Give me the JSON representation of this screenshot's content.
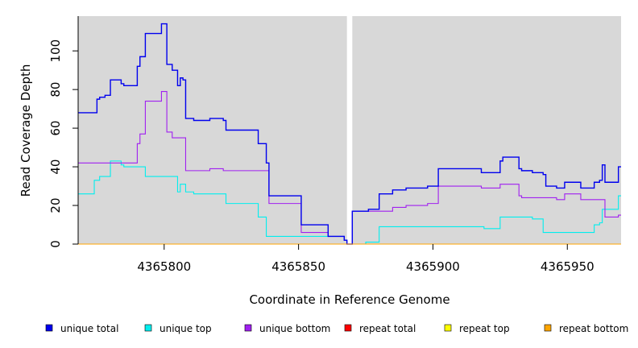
{
  "chart_data": {
    "type": "line",
    "title": "",
    "xlabel": "Coordinate in Reference Genome",
    "ylabel": "Read Coverage Depth",
    "xlim": [
      4365768,
      4365970
    ],
    "ylim": [
      0,
      118
    ],
    "grid": false,
    "background": "#d8d8d8",
    "gap": {
      "from": 4365868,
      "to": 4365870
    },
    "x_ticks": [
      4365800,
      4365850,
      4365900,
      4365950
    ],
    "x_tick_labels": [
      "4365800",
      "4365850",
      "4365900",
      "4365950"
    ],
    "y_ticks": [
      0,
      20,
      40,
      60,
      80,
      100
    ],
    "y_tick_labels": [
      "0",
      "20",
      "40",
      "60",
      "80",
      "100"
    ],
    "legend_position": "bottom",
    "series": [
      {
        "name": "unique total",
        "color": "#0000ee",
        "step": true,
        "points": [
          [
            4365768,
            68
          ],
          [
            4365775,
            75
          ],
          [
            4365776,
            76
          ],
          [
            4365778,
            77
          ],
          [
            4365780,
            85
          ],
          [
            4365782,
            85
          ],
          [
            4365784,
            83
          ],
          [
            4365785,
            82
          ],
          [
            4365790,
            92
          ],
          [
            4365791,
            97
          ],
          [
            4365793,
            109
          ],
          [
            4365799,
            114
          ],
          [
            4365801,
            93
          ],
          [
            4365803,
            90
          ],
          [
            4365805,
            82
          ],
          [
            4365806,
            86
          ],
          [
            4365807,
            85
          ],
          [
            4365808,
            65
          ],
          [
            4365811,
            64
          ],
          [
            4365817,
            65
          ],
          [
            4365822,
            64
          ],
          [
            4365823,
            59
          ],
          [
            4365835,
            52
          ],
          [
            4365838,
            42
          ],
          [
            4365839,
            25
          ],
          [
            4365851,
            10
          ],
          [
            4365861,
            4
          ],
          [
            4365867,
            2
          ],
          [
            4365868,
            0
          ],
          [
            4365870,
            17
          ],
          [
            4365876,
            18
          ],
          [
            4365880,
            26
          ],
          [
            4365885,
            28
          ],
          [
            4365890,
            29
          ],
          [
            4365898,
            30
          ],
          [
            4365902,
            39
          ],
          [
            4365918,
            37
          ],
          [
            4365925,
            43
          ],
          [
            4365926,
            45
          ],
          [
            4365932,
            39
          ],
          [
            4365933,
            38
          ],
          [
            4365937,
            37
          ],
          [
            4365941,
            36
          ],
          [
            4365942,
            30
          ],
          [
            4365946,
            29
          ],
          [
            4365949,
            32
          ],
          [
            4365955,
            29
          ],
          [
            4365960,
            32
          ],
          [
            4365962,
            33
          ],
          [
            4365963,
            41
          ],
          [
            4365964,
            32
          ],
          [
            4365969,
            40
          ]
        ]
      },
      {
        "name": "unique top",
        "color": "#00eeee",
        "step": true,
        "points": [
          [
            4365768,
            26
          ],
          [
            4365774,
            33
          ],
          [
            4365776,
            35
          ],
          [
            4365780,
            43
          ],
          [
            4365784,
            41
          ],
          [
            4365785,
            40
          ],
          [
            4365793,
            35
          ],
          [
            4365805,
            27
          ],
          [
            4365806,
            31
          ],
          [
            4365808,
            27
          ],
          [
            4365811,
            26
          ],
          [
            4365823,
            21
          ],
          [
            4365835,
            14
          ],
          [
            4365838,
            4
          ],
          [
            4365867,
            2
          ],
          [
            4365868,
            0
          ],
          [
            4365870,
            0
          ],
          [
            4365875,
            1
          ],
          [
            4365880,
            9
          ],
          [
            4365919,
            8
          ],
          [
            4365925,
            14
          ],
          [
            4365937,
            13
          ],
          [
            4365941,
            6
          ],
          [
            4365960,
            10
          ],
          [
            4365962,
            11
          ],
          [
            4365963,
            18
          ],
          [
            4365969,
            25
          ]
        ]
      },
      {
        "name": "unique bottom",
        "color": "#a020f0",
        "step": true,
        "points": [
          [
            4365768,
            42
          ],
          [
            4365790,
            52
          ],
          [
            4365791,
            57
          ],
          [
            4365793,
            74
          ],
          [
            4365799,
            79
          ],
          [
            4365801,
            58
          ],
          [
            4365803,
            55
          ],
          [
            4365808,
            38
          ],
          [
            4365817,
            39
          ],
          [
            4365822,
            38
          ],
          [
            4365839,
            21
          ],
          [
            4365851,
            6
          ],
          [
            4365861,
            4
          ],
          [
            4365867,
            2
          ],
          [
            4365868,
            0
          ],
          [
            4365870,
            17
          ],
          [
            4365885,
            19
          ],
          [
            4365890,
            20
          ],
          [
            4365898,
            21
          ],
          [
            4365902,
            30
          ],
          [
            4365918,
            29
          ],
          [
            4365925,
            31
          ],
          [
            4365932,
            25
          ],
          [
            4365933,
            24
          ],
          [
            4365946,
            23
          ],
          [
            4365949,
            26
          ],
          [
            4365955,
            23
          ],
          [
            4365964,
            14
          ],
          [
            4365969,
            15
          ]
        ]
      },
      {
        "name": "repeat total",
        "color": "#ff0000",
        "step": true,
        "points": [
          [
            4365768,
            0
          ],
          [
            4365970,
            0
          ]
        ]
      },
      {
        "name": "repeat top",
        "color": "#ffff00",
        "step": true,
        "points": [
          [
            4365768,
            0
          ],
          [
            4365970,
            0
          ]
        ]
      },
      {
        "name": "repeat bottom",
        "color": "#ffa500",
        "step": true,
        "points": [
          [
            4365768,
            0
          ],
          [
            4365970,
            0
          ]
        ]
      }
    ]
  }
}
